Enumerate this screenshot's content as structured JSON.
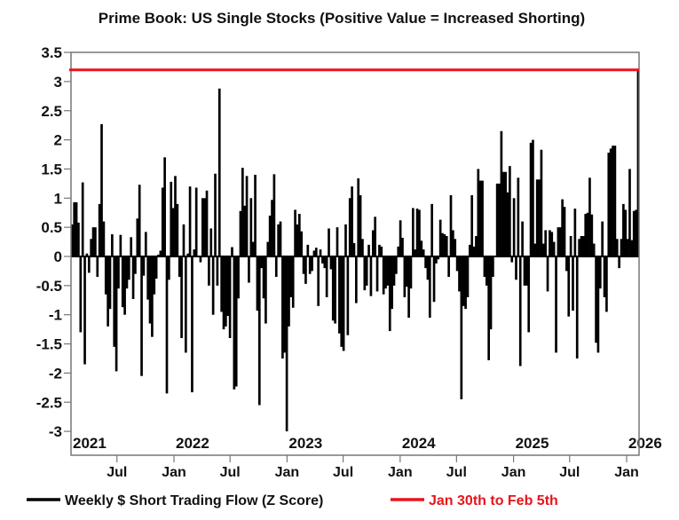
{
  "chart_data": {
    "type": "bar",
    "title": "Prime Book: US Single Stocks (Positive Value = Increased Shorting)",
    "xlabel": "",
    "ylabel": "",
    "frequency": "weekly",
    "x_range": [
      "2021-02",
      "2026-02-05"
    ],
    "ylim": [
      -3.4,
      3.5
    ],
    "grid": false,
    "legend_placement": "bottom",
    "y_ticks": [
      "3.5",
      "3",
      "2.5",
      "2",
      "1.5",
      "1",
      "0.5",
      "0",
      "-0.5",
      "-1",
      "-1.5",
      "-2",
      "-2.5",
      "-3"
    ],
    "year_labels": [
      {
        "label": "2021",
        "date": "2021-02-01"
      },
      {
        "label": "2022",
        "date": "2022-01-01"
      },
      {
        "label": "2023",
        "date": "2023-01-01"
      },
      {
        "label": "2024",
        "date": "2024-01-01"
      },
      {
        "label": "2025",
        "date": "2025-01-01"
      },
      {
        "label": "2026",
        "date": "2026-01-01"
      }
    ],
    "x_ticks": [
      {
        "label": "Jul",
        "date": "2021-07-01"
      },
      {
        "label": "Jan",
        "date": "2022-01-01"
      },
      {
        "label": "Jul",
        "date": "2022-07-01"
      },
      {
        "label": "Jan",
        "date": "2023-01-01"
      },
      {
        "label": "Jul",
        "date": "2023-07-01"
      },
      {
        "label": "Jan",
        "date": "2024-01-01"
      },
      {
        "label": "Jul",
        "date": "2024-07-01"
      },
      {
        "label": "Jan",
        "date": "2025-01-01"
      },
      {
        "label": "Jul",
        "date": "2025-07-01"
      },
      {
        "label": "Jan",
        "date": "2026-01-01"
      }
    ],
    "series": [
      {
        "name": "Weekly $ Short Trading Flow (Z Score)",
        "color": "#000000",
        "values": [
          0.55,
          0.93,
          0.93,
          0.58,
          -1.3,
          1.27,
          -1.85,
          0.05,
          -0.28,
          0.3,
          0.5,
          0.5,
          -0.35,
          0.9,
          2.27,
          0.6,
          -0.65,
          -1.2,
          -0.9,
          0.38,
          -1.55,
          -1.97,
          -0.55,
          0.37,
          -0.87,
          -1.0,
          -0.55,
          -0.4,
          0.33,
          -0.73,
          -0.3,
          0.65,
          1.23,
          -2.05,
          -0.33,
          0.42,
          -0.74,
          -1.15,
          -1.38,
          -0.65,
          -0.38,
          0.03,
          0.1,
          1.18,
          1.7,
          -2.35,
          -0.4,
          1.28,
          0.83,
          1.38,
          0.9,
          -0.35,
          -1.4,
          0.55,
          -1.65,
          0.05,
          1.2,
          -2.33,
          0.12,
          1.18,
          0.0,
          -0.1,
          1.0,
          1.0,
          1.13,
          -0.5,
          0.48,
          -1.0,
          1.42,
          -0.5,
          2.88,
          -0.95,
          -1.25,
          -1.2,
          -1.02,
          -1.4,
          0.16,
          -2.28,
          -2.23,
          -0.72,
          0.78,
          1.52,
          0.87,
          1.38,
          -0.45,
          1.0,
          0.25,
          1.4,
          -0.93,
          -2.55,
          -0.2,
          -0.72,
          -1.15,
          0.25,
          0.7,
          0.97,
          1.41,
          -0.35,
          0.55,
          0.6,
          -1.75,
          -1.65,
          -3.0,
          -1.2,
          -0.7,
          -0.88,
          0.8,
          0.55,
          0.73,
          0.43,
          -0.3,
          -0.47,
          0.2,
          -0.3,
          -0.25,
          0.1,
          0.15,
          -0.85,
          0.12,
          -0.12,
          -0.2,
          -0.7,
          0.48,
          -0.22,
          -1.1,
          -1.15,
          0.5,
          -1.32,
          -1.55,
          -1.62,
          0.55,
          -1.35,
          1.0,
          1.2,
          0.23,
          -0.8,
          1.34,
          1.05,
          0.3,
          -0.58,
          -0.5,
          0.2,
          -0.68,
          0.45,
          0.68,
          -0.6,
          0.2,
          0.17,
          -0.65,
          -0.55,
          -0.5,
          -1.28,
          -0.9,
          -0.5,
          -0.3,
          0.17,
          0.62,
          0.32,
          -0.7,
          -0.52,
          -1.05,
          -0.55,
          0.83,
          0.12,
          0.82,
          0.8,
          0.27,
          0.12,
          -0.2,
          -0.4,
          -1.05,
          0.9,
          -0.78,
          -0.12,
          -0.05,
          0.63,
          0.4,
          0.38,
          0.35,
          -0.35,
          1.05,
          0.45,
          0.3,
          -0.25,
          -0.6,
          -2.45,
          -0.85,
          -0.9,
          -0.7,
          0.2,
          1.05,
          0.17,
          0.35,
          1.5,
          1.3,
          1.3,
          -0.35,
          -0.5,
          -1.78,
          -1.25,
          -0.35,
          0.0,
          1.25,
          1.25,
          2.15,
          1.45,
          1.45,
          1.1,
          1.55,
          -0.1,
          1.0,
          -0.4,
          1.35,
          -1.88,
          0.6,
          -0.5,
          -0.5,
          -1.3,
          1.95,
          2.0,
          0.22,
          1.32,
          1.32,
          1.83,
          0.22,
          0.45,
          -0.6,
          0.45,
          0.42,
          0.25,
          -1.65,
          0.5,
          0.5,
          0.98,
          0.85,
          -0.25,
          -1.03,
          0.35,
          -0.93,
          0.82,
          -1.75,
          0.3,
          0.35,
          0.35,
          0.73,
          0.75,
          1.35,
          0.72,
          0.22,
          -1.48,
          -1.65,
          -0.55,
          0.6,
          -0.7,
          -0.95,
          1.78,
          1.85,
          1.9,
          1.9,
          0.3,
          -0.2,
          0.3,
          0.9,
          0.8,
          0.3,
          1.5,
          0.28,
          0.78,
          0.8,
          3.2
        ]
      }
    ],
    "reference_line": {
      "name": "Jan 30th to Feb 5th",
      "value": 3.2,
      "color": "#e8141b"
    }
  }
}
